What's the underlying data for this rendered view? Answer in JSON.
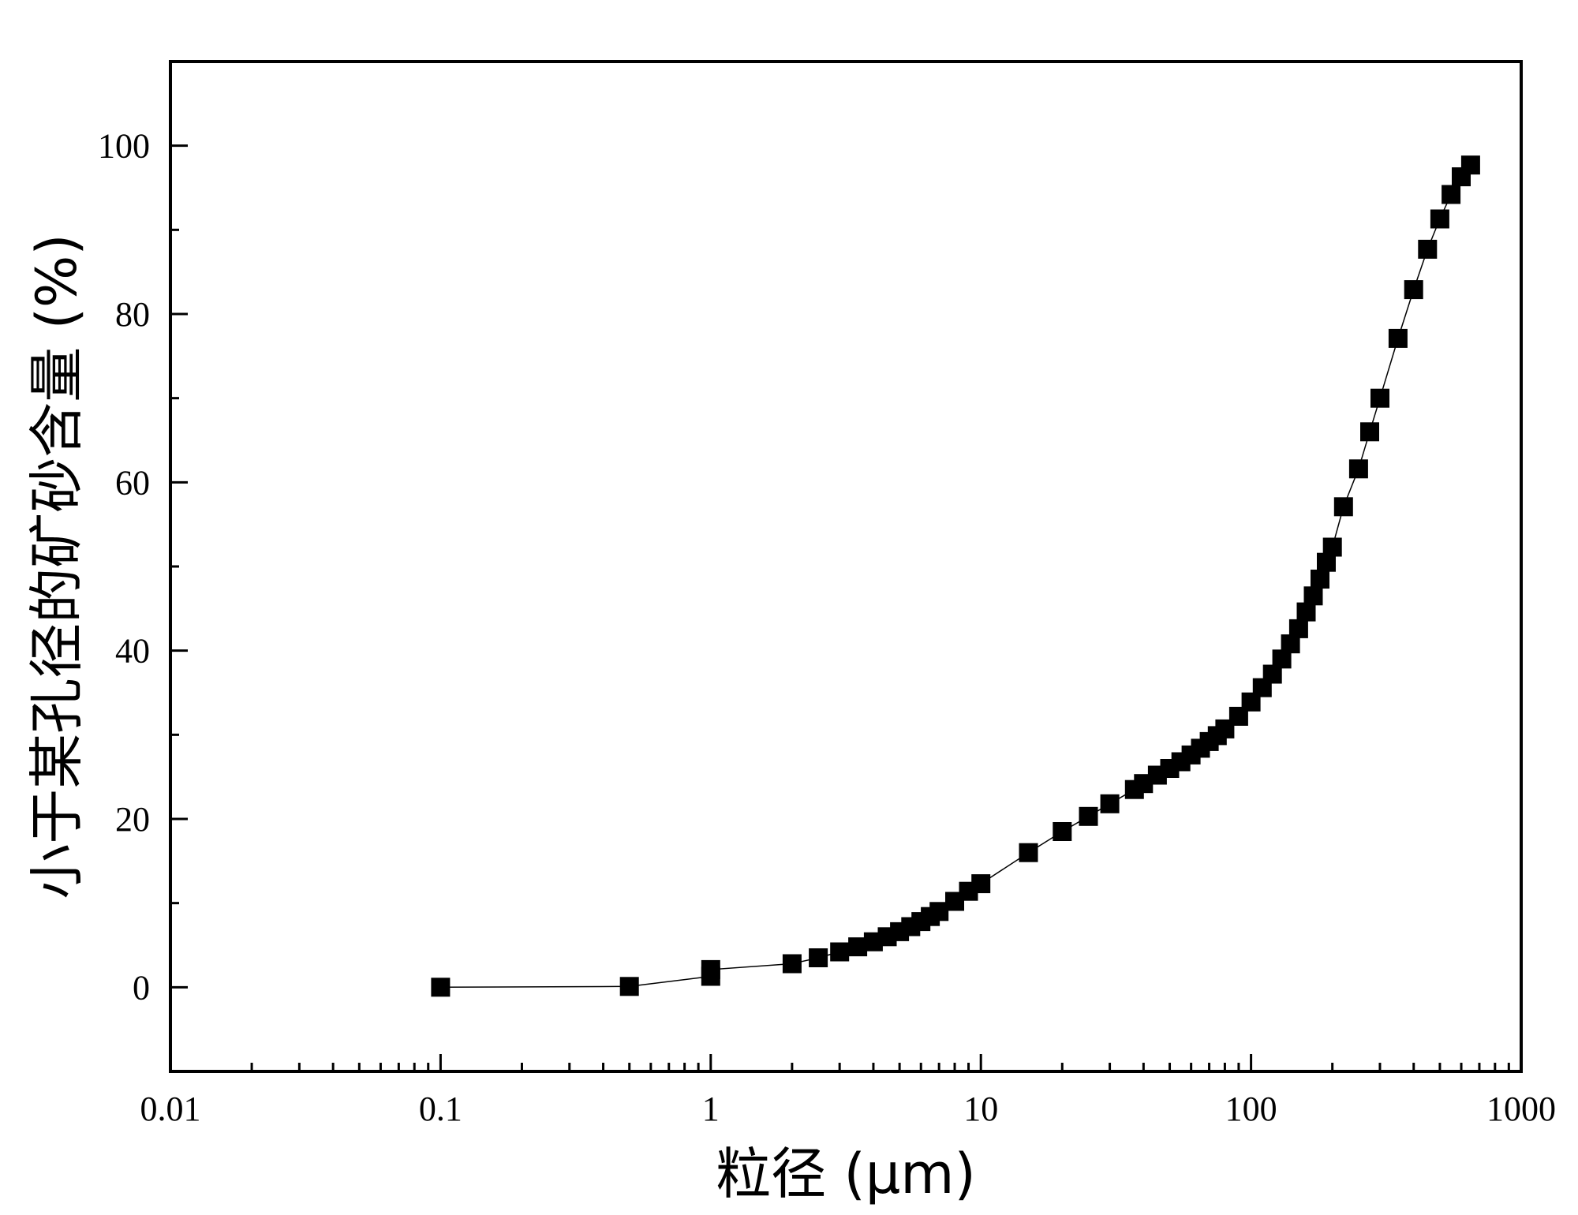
{
  "chart_data": {
    "type": "scatter",
    "xlabel": "粒径 (μm)",
    "ylabel": "小于某孔径的矿砂含量 (%)",
    "xscale": "log",
    "xlim": [
      0.01,
      1000
    ],
    "ylim": [
      -10,
      110
    ],
    "xticks": [
      {
        "value": 0.01,
        "label": "0.01"
      },
      {
        "value": 0.1,
        "label": "0.1"
      },
      {
        "value": 1,
        "label": "1"
      },
      {
        "value": 10,
        "label": "10"
      },
      {
        "value": 100,
        "label": "100"
      },
      {
        "value": 1000,
        "label": "1000"
      }
    ],
    "yticks": [
      {
        "value": 0,
        "label": "0"
      },
      {
        "value": 20,
        "label": "20"
      },
      {
        "value": 40,
        "label": "40"
      },
      {
        "value": 60,
        "label": "60"
      },
      {
        "value": 80,
        "label": "80"
      },
      {
        "value": 100,
        "label": "100"
      }
    ],
    "grid": false,
    "marker": "square",
    "line": true,
    "color": "#000000",
    "series": [
      {
        "points": [
          [
            0.1,
            0
          ],
          [
            0.5,
            0.1
          ],
          [
            1,
            1.3
          ],
          [
            1,
            2.1
          ],
          [
            2,
            2.8
          ],
          [
            2.5,
            3.5
          ],
          [
            3,
            4.2
          ],
          [
            3.5,
            4.8
          ],
          [
            4,
            5.4
          ],
          [
            4.5,
            6.0
          ],
          [
            5,
            6.6
          ],
          [
            5.5,
            7.2
          ],
          [
            6,
            7.8
          ],
          [
            6.5,
            8.4
          ],
          [
            7,
            9.0
          ],
          [
            8,
            10.2
          ],
          [
            9,
            11.4
          ],
          [
            10,
            12.3
          ],
          [
            15,
            16.0
          ],
          [
            20,
            18.5
          ],
          [
            25,
            20.3
          ],
          [
            30,
            21.8
          ],
          [
            37,
            23.5
          ],
          [
            40,
            24.2
          ],
          [
            45,
            25.2
          ],
          [
            50,
            26.0
          ],
          [
            55,
            26.8
          ],
          [
            60,
            27.6
          ],
          [
            65,
            28.4
          ],
          [
            70,
            29.2
          ],
          [
            75,
            29.9
          ],
          [
            80,
            30.7
          ],
          [
            90,
            32.2
          ],
          [
            100,
            33.9
          ],
          [
            110,
            35.6
          ],
          [
            120,
            37.2
          ],
          [
            130,
            39.0
          ],
          [
            140,
            40.8
          ],
          [
            150,
            42.6
          ],
          [
            160,
            44.6
          ],
          [
            170,
            46.5
          ],
          [
            180,
            48.5
          ],
          [
            190,
            50.5
          ],
          [
            200,
            52.3
          ],
          [
            220,
            57.1
          ],
          [
            250,
            61.6
          ],
          [
            275,
            66.0
          ],
          [
            300,
            70.0
          ],
          [
            350,
            77.1
          ],
          [
            400,
            82.9
          ],
          [
            450,
            87.7
          ],
          [
            500,
            91.3
          ],
          [
            550,
            94.2
          ],
          [
            600,
            96.3
          ],
          [
            650,
            97.7
          ]
        ]
      }
    ]
  }
}
